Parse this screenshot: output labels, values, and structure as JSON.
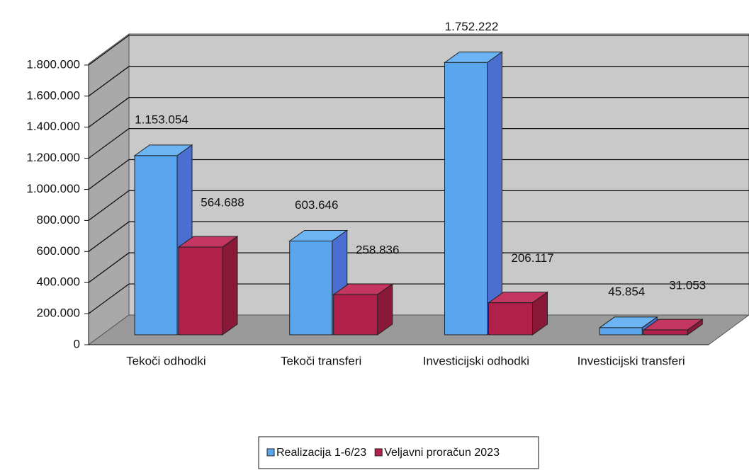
{
  "chart_data": {
    "type": "bar3d",
    "categories": [
      "Tekoči odhodki",
      "Tekoči transferi",
      "Investicijski odhodki",
      "Investicijski transferi"
    ],
    "series": [
      {
        "name": "Realizacija 1-6/23",
        "color": "#5aa6ee",
        "values": [
          1153054,
          603646,
          1752222,
          45854
        ],
        "value_labels": [
          "1.153.054",
          "603.646",
          "1.752.222",
          "45.854"
        ]
      },
      {
        "name": "Veljavni proračun 2023",
        "color": "#b0204a",
        "values": [
          564688,
          258836,
          206117,
          31053
        ],
        "value_labels": [
          "564.688",
          "258.836",
          "206.117",
          "31.053"
        ]
      }
    ],
    "ylim": [
      0,
      2000000
    ],
    "yticks": [
      0,
      {
        "value": 200000,
        "label": "200.000"
      },
      {
        "value": 400000,
        "label": "400.000"
      },
      {
        "value": 600000,
        "label": "600.000"
      },
      {
        "value": 800000,
        "label": "800.000"
      },
      {
        "value": 1000000,
        "label": "1.000.000"
      },
      {
        "value": 1200000,
        "label": "1.200.000"
      },
      {
        "value": 1400000,
        "label": "1.400.000"
      },
      {
        "value": 1600000,
        "label": "1.600.000"
      },
      {
        "value": 1800000,
        "label": "1.800.000"
      }
    ],
    "grid": true,
    "legend": "bottom"
  }
}
